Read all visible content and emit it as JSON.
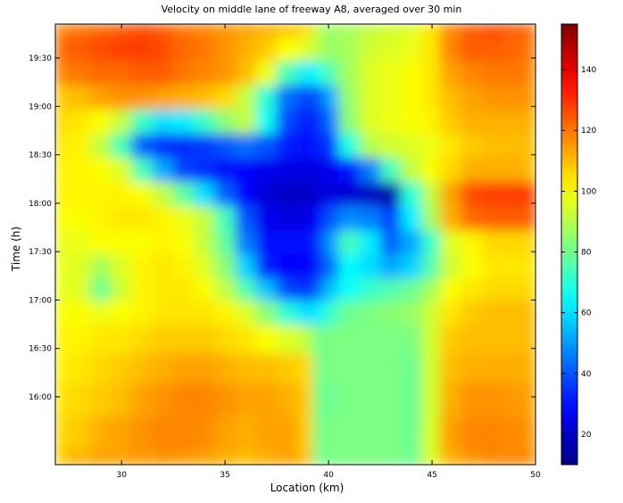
{
  "chart_data": {
    "type": "heatmap",
    "title": "Velocity on middle lane of freeway A8, averaged over 30 min",
    "xlabel": "Location (km)",
    "ylabel": "Time (h)",
    "xlim": [
      26.8,
      50
    ],
    "ylim_hours": [
      15.3,
      19.85
    ],
    "x_ticks": [
      {
        "value": 30,
        "label": "30"
      },
      {
        "value": 35,
        "label": "35"
      },
      {
        "value": 40,
        "label": "40"
      },
      {
        "value": 45,
        "label": "45"
      },
      {
        "value": 50,
        "label": "50"
      }
    ],
    "y_ticks": [
      {
        "value": 16.0,
        "label": "16:00"
      },
      {
        "value": 16.5,
        "label": "16:30"
      },
      {
        "value": 17.0,
        "label": "17:00"
      },
      {
        "value": 17.5,
        "label": "17:30"
      },
      {
        "value": 18.0,
        "label": "18:00"
      },
      {
        "value": 18.5,
        "label": "18:30"
      },
      {
        "value": 19.0,
        "label": "19:00"
      },
      {
        "value": 19.5,
        "label": "19:30"
      }
    ],
    "colorbar": {
      "colormap": "jet",
      "vmin": 10,
      "vmax": 155,
      "ticks": [
        {
          "value": 20,
          "label": "20"
        },
        {
          "value": 40,
          "label": "40"
        },
        {
          "value": 60,
          "label": "60"
        },
        {
          "value": 80,
          "label": "80"
        },
        {
          "value": 100,
          "label": "100"
        },
        {
          "value": 120,
          "label": "120"
        },
        {
          "value": 140,
          "label": "140"
        }
      ]
    },
    "x": [
      26.8,
      28,
      29,
      30,
      31,
      32,
      33,
      34,
      35,
      36,
      37,
      38,
      39,
      39.5,
      40,
      41,
      42,
      43,
      44,
      45,
      45.8,
      47,
      48,
      49,
      50
    ],
    "y": [
      15.3,
      15.6,
      16.0,
      16.3,
      16.6,
      16.9,
      17.1,
      17.35,
      17.6,
      17.85,
      18.1,
      18.35,
      18.6,
      18.85,
      19.1,
      19.35,
      19.6,
      19.85
    ],
    "values": [
      [
        108,
        112,
        114,
        114,
        115,
        116,
        115,
        114,
        112,
        110,
        112,
        114,
        110,
        80,
        82,
        82,
        82,
        82,
        80,
        95,
        112,
        116,
        118,
        118,
        118
      ],
      [
        106,
        108,
        112,
        114,
        116,
        118,
        118,
        117,
        114,
        112,
        114,
        114,
        108,
        80,
        82,
        82,
        82,
        82,
        80,
        95,
        114,
        118,
        118,
        117,
        116
      ],
      [
        104,
        106,
        108,
        110,
        114,
        116,
        118,
        118,
        116,
        114,
        114,
        112,
        108,
        80,
        80,
        82,
        82,
        82,
        80,
        94,
        112,
        116,
        116,
        115,
        114
      ],
      [
        102,
        104,
        106,
        108,
        110,
        112,
        114,
        114,
        112,
        110,
        110,
        108,
        106,
        80,
        82,
        82,
        82,
        82,
        80,
        94,
        110,
        112,
        112,
        112,
        112
      ],
      [
        102,
        102,
        104,
        104,
        106,
        108,
        108,
        108,
        106,
        104,
        100,
        96,
        92,
        80,
        82,
        82,
        82,
        82,
        82,
        94,
        108,
        110,
        110,
        110,
        110
      ],
      [
        100,
        100,
        98,
        100,
        102,
        104,
        104,
        104,
        102,
        96,
        84,
        70,
        60,
        62,
        72,
        80,
        82,
        84,
        86,
        94,
        104,
        108,
        110,
        110,
        110
      ],
      [
        98,
        96,
        80,
        94,
        102,
        104,
        104,
        100,
        92,
        76,
        56,
        38,
        34,
        42,
        56,
        66,
        72,
        76,
        80,
        88,
        100,
        104,
        106,
        106,
        106
      ],
      [
        98,
        96,
        88,
        96,
        102,
        104,
        102,
        96,
        84,
        58,
        32,
        28,
        28,
        32,
        44,
        64,
        60,
        52,
        58,
        76,
        94,
        100,
        104,
        104,
        104
      ],
      [
        98,
        98,
        100,
        100,
        100,
        102,
        100,
        92,
        78,
        46,
        30,
        30,
        30,
        34,
        50,
        74,
        62,
        42,
        52,
        72,
        96,
        102,
        106,
        106,
        106
      ],
      [
        100,
        100,
        102,
        104,
        104,
        102,
        98,
        92,
        74,
        40,
        26,
        24,
        24,
        28,
        40,
        48,
        46,
        38,
        62,
        88,
        112,
        122,
        124,
        124,
        124
      ],
      [
        102,
        102,
        102,
        102,
        100,
        92,
        78,
        60,
        42,
        28,
        22,
        20,
        20,
        22,
        24,
        22,
        20,
        16,
        70,
        92,
        114,
        126,
        128,
        128,
        128
      ],
      [
        102,
        102,
        100,
        96,
        74,
        52,
        38,
        34,
        30,
        28,
        26,
        24,
        24,
        24,
        26,
        30,
        46,
        74,
        92,
        100,
        106,
        112,
        112,
        112,
        110
      ],
      [
        104,
        102,
        92,
        74,
        42,
        34,
        34,
        36,
        40,
        44,
        40,
        32,
        30,
        32,
        36,
        68,
        90,
        94,
        96,
        98,
        104,
        108,
        110,
        110,
        110
      ],
      [
        106,
        104,
        100,
        92,
        72,
        60,
        62,
        72,
        84,
        92,
        66,
        38,
        32,
        34,
        44,
        84,
        96,
        98,
        100,
        102,
        108,
        112,
        112,
        112,
        112
      ],
      [
        108,
        110,
        114,
        116,
        116,
        114,
        112,
        110,
        106,
        92,
        70,
        44,
        38,
        40,
        52,
        86,
        96,
        98,
        100,
        104,
        110,
        114,
        116,
        116,
        116
      ],
      [
        118,
        120,
        122,
        122,
        124,
        124,
        120,
        118,
        116,
        110,
        98,
        74,
        62,
        66,
        76,
        88,
        96,
        98,
        100,
        104,
        114,
        118,
        120,
        120,
        118
      ],
      [
        122,
        124,
        126,
        128,
        128,
        126,
        122,
        120,
        116,
        112,
        108,
        100,
        96,
        90,
        86,
        88,
        94,
        96,
        98,
        104,
        118,
        124,
        124,
        122,
        120
      ],
      [
        118,
        120,
        122,
        124,
        126,
        124,
        120,
        118,
        116,
        114,
        112,
        110,
        106,
        92,
        86,
        88,
        92,
        94,
        96,
        104,
        118,
        124,
        126,
        124,
        122
      ]
    ]
  }
}
